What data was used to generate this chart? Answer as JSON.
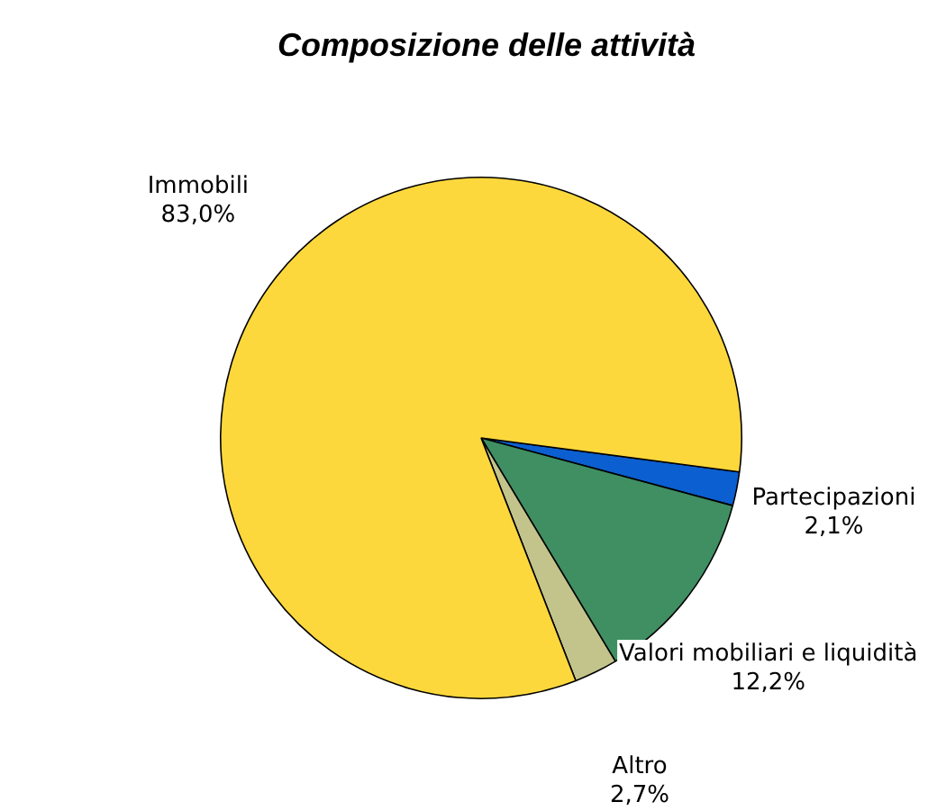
{
  "chart_data": {
    "type": "pie",
    "title": "Composizione delle attività",
    "categories": [
      "Partecipazioni",
      "Valori mobiliari e liquidità",
      "Altro",
      "Immobili"
    ],
    "values": [
      2.1,
      12.2,
      2.7,
      83.0
    ],
    "value_labels": [
      "2,1%",
      "12,2%",
      "2,7%",
      "83,0%"
    ],
    "colors": [
      "#0b5fd0",
      "#3f8f63",
      "#c3c48b",
      "#fdd83c"
    ],
    "legend": false
  }
}
